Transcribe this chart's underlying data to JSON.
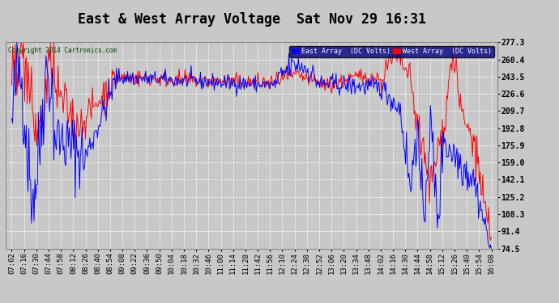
{
  "title": "East & West Array Voltage  Sat Nov 29 16:31",
  "copyright": "Copyright 2014 Cartronics.com",
  "legend_east": "East Array  (DC Volts)",
  "legend_west": "West Array  (DC Volts)",
  "east_color": "#0000ff",
  "west_color": "#ff0000",
  "ylim": [
    74.5,
    277.3
  ],
  "yticks": [
    74.5,
    91.4,
    108.3,
    125.2,
    142.1,
    159.0,
    175.9,
    192.8,
    209.7,
    226.6,
    243.5,
    260.4,
    277.3
  ],
  "background_color": "#c8c8c8",
  "plot_bg_color": "#c8c8c8",
  "grid_color": "#ffffff",
  "title_fontsize": 12,
  "tick_fontsize": 6.5,
  "xtick_labels": [
    "07:02",
    "07:16",
    "07:30",
    "07:44",
    "07:58",
    "08:12",
    "08:26",
    "08:40",
    "08:54",
    "09:08",
    "09:22",
    "09:36",
    "09:50",
    "10:04",
    "10:18",
    "10:32",
    "10:46",
    "11:00",
    "11:14",
    "11:28",
    "11:42",
    "11:56",
    "12:10",
    "12:24",
    "12:38",
    "12:52",
    "13:06",
    "13:20",
    "13:34",
    "13:48",
    "14:02",
    "14:16",
    "14:30",
    "14:44",
    "14:58",
    "15:12",
    "15:26",
    "15:40",
    "15:54",
    "16:08"
  ]
}
